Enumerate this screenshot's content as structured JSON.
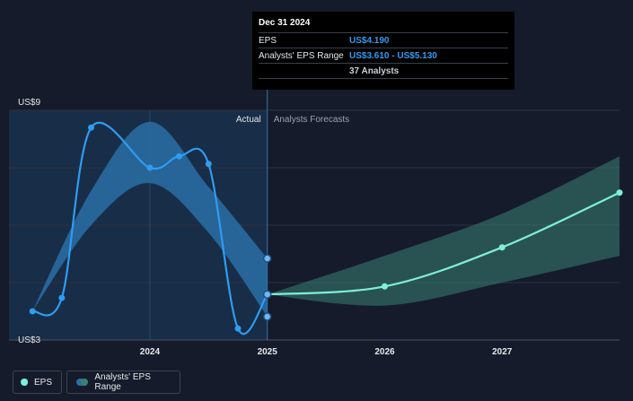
{
  "tooltip": {
    "date": "Dec 31 2024",
    "rows": [
      {
        "label": "EPS",
        "value": "US$4.190"
      },
      {
        "label": "Analysts' EPS Range",
        "value": "US$3.610 - US$5.130"
      },
      {
        "label": "",
        "value": "37 Analysts"
      }
    ]
  },
  "legend": {
    "eps": "EPS",
    "range": "Analysts' EPS Range"
  },
  "colors": {
    "background": "#151b2a",
    "eps_line": "#2f9cf2",
    "forecast_line": "#7ef0d8",
    "actual_band": "#2a6ea6",
    "forecast_band": "#3b7f74"
  },
  "chart_data": {
    "type": "line",
    "ylim": [
      3,
      9
    ],
    "y_tick_labels": [
      {
        "value": 9,
        "label": "US$9"
      },
      {
        "value": 3,
        "label": "US$3"
      }
    ],
    "x_ticks": [
      {
        "value": 2024.0,
        "label": "2024"
      },
      {
        "value": 2025.0,
        "label": "2025"
      },
      {
        "value": 2026.0,
        "label": "2026"
      },
      {
        "value": 2027.0,
        "label": "2027"
      }
    ],
    "xlim": [
      2022.8,
      2028.0
    ],
    "region_labels": {
      "actual": "Actual",
      "forecast": "Analysts Forecasts"
    },
    "divider_x": 2025.0,
    "series": [
      {
        "name": "EPS",
        "kind": "actual",
        "points": [
          {
            "x": 2023.0,
            "y": 3.75
          },
          {
            "x": 2023.25,
            "y": 4.1
          },
          {
            "x": 2023.5,
            "y": 8.55
          },
          {
            "x": 2024.0,
            "y": 7.5
          },
          {
            "x": 2024.25,
            "y": 7.8
          },
          {
            "x": 2024.5,
            "y": 7.6
          },
          {
            "x": 2024.75,
            "y": 3.3
          },
          {
            "x": 2025.0,
            "y": 4.19
          }
        ]
      },
      {
        "name": "EPS",
        "kind": "forecast",
        "points": [
          {
            "x": 2025.0,
            "y": 4.19
          },
          {
            "x": 2026.0,
            "y": 4.4
          },
          {
            "x": 2027.0,
            "y": 5.42
          },
          {
            "x": 2028.0,
            "y": 6.85
          }
        ]
      }
    ],
    "range_actual": {
      "upper": [
        {
          "x": 2023.0,
          "y": 3.75
        },
        {
          "x": 2023.5,
          "y": 6.9
        },
        {
          "x": 2024.0,
          "y": 8.7
        },
        {
          "x": 2024.5,
          "y": 7.0
        },
        {
          "x": 2025.0,
          "y": 5.13
        }
      ],
      "lower": [
        {
          "x": 2023.0,
          "y": 3.75
        },
        {
          "x": 2023.5,
          "y": 6.0
        },
        {
          "x": 2024.0,
          "y": 7.1
        },
        {
          "x": 2024.5,
          "y": 5.8
        },
        {
          "x": 2025.0,
          "y": 3.61
        }
      ]
    },
    "range_forecast": {
      "upper": [
        {
          "x": 2025.0,
          "y": 4.19
        },
        {
          "x": 2026.0,
          "y": 5.2
        },
        {
          "x": 2027.0,
          "y": 6.3
        },
        {
          "x": 2028.0,
          "y": 7.8
        }
      ],
      "lower": [
        {
          "x": 2025.0,
          "y": 4.19
        },
        {
          "x": 2026.0,
          "y": 3.9
        },
        {
          "x": 2027.0,
          "y": 4.5
        },
        {
          "x": 2028.0,
          "y": 5.2
        }
      ]
    },
    "tooltip_markers": [
      {
        "x": 2025.0,
        "y": 5.13
      },
      {
        "x": 2025.0,
        "y": 4.19
      },
      {
        "x": 2025.0,
        "y": 3.61
      }
    ],
    "grid": true
  }
}
